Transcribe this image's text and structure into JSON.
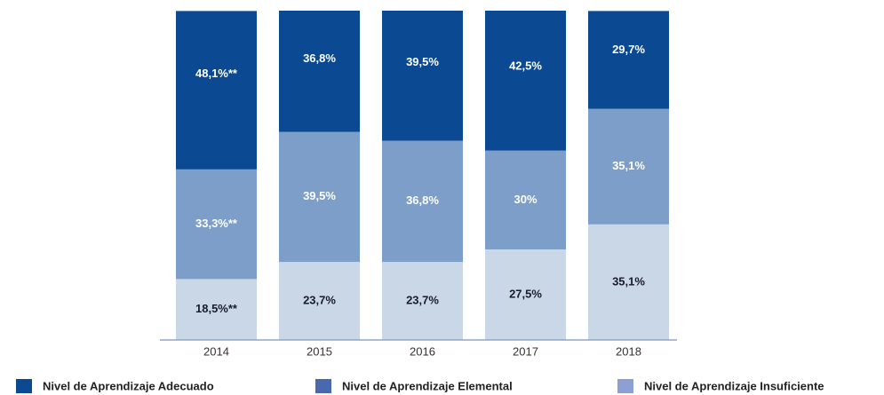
{
  "chart_data": {
    "type": "stacked_bar",
    "categories": [
      "2014",
      "2015",
      "2016",
      "2017",
      "2018"
    ],
    "series": [
      {
        "name": "Nivel de Aprendizaje Insuficiente",
        "color": "#c9d7e6",
        "label_color": "#1a1a2e",
        "legend_color": "#8da0d4",
        "values": [
          18.5,
          23.7,
          23.7,
          27.5,
          35.1
        ],
        "value_labels": [
          "18,5%**",
          "23,7%",
          "23,7%",
          "27,5%",
          "35,1%"
        ]
      },
      {
        "name": "Nivel de Aprendizaje Elemental",
        "color": "#7c9ec8",
        "label_color": "#ffffff",
        "legend_color": "#4a68b0",
        "values": [
          33.3,
          39.5,
          36.8,
          30,
          35.1
        ],
        "value_labels": [
          "33,3%**",
          "39,5%",
          "36,8%",
          "30%",
          "35,1%"
        ]
      },
      {
        "name": "Nivel de Aprendizaje Adecuado",
        "color": "#0b4a93",
        "label_color": "#ffffff",
        "legend_color": "#0b4a93",
        "values": [
          48.1,
          36.8,
          39.5,
          42.5,
          29.7
        ],
        "value_labels": [
          "48,1%**",
          "36,8%",
          "39,5%",
          "42,5%",
          "29,7%"
        ]
      }
    ],
    "legend_order": [
      2,
      1,
      0
    ]
  }
}
